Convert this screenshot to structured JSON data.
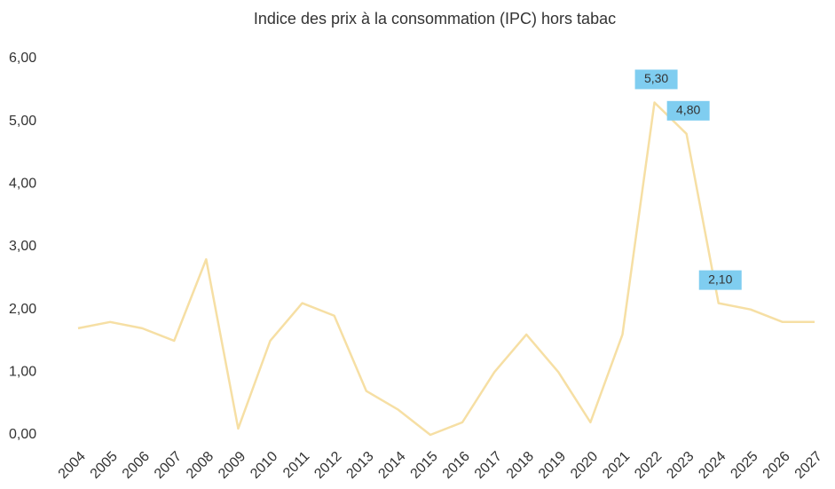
{
  "chart_data": {
    "type": "line",
    "title": "Indice des prix à la consommation (IPC) hors tabac",
    "categories": [
      "2004",
      "2005",
      "2006",
      "2007",
      "2008",
      "2009",
      "2010",
      "2011",
      "2012",
      "2013",
      "2014",
      "2015",
      "2016",
      "2017",
      "2018",
      "2019",
      "2020",
      "2021",
      "2022",
      "2023",
      "2024",
      "2025",
      "2026",
      "2027"
    ],
    "values": [
      1.7,
      1.8,
      1.7,
      1.5,
      2.8,
      0.1,
      1.5,
      2.1,
      1.9,
      0.7,
      0.4,
      0.0,
      0.2,
      1.0,
      1.6,
      1.0,
      0.2,
      1.6,
      5.3,
      4.8,
      2.1,
      2.0,
      1.8,
      1.8
    ],
    "value_labels": [
      null,
      null,
      null,
      null,
      null,
      null,
      null,
      null,
      null,
      null,
      null,
      null,
      null,
      null,
      null,
      null,
      null,
      null,
      "5,30",
      "4,80",
      "2,10",
      null,
      null,
      null
    ],
    "color": "#f6dfa4",
    "label_color": "#7fcdf0",
    "ylim": [
      0,
      6
    ],
    "yticks": [
      {
        "value": 0,
        "label": "0,00"
      },
      {
        "value": 1,
        "label": "1,00"
      },
      {
        "value": 2,
        "label": "2,00"
      },
      {
        "value": 3,
        "label": "3,00"
      },
      {
        "value": 4,
        "label": "4,00"
      },
      {
        "value": 5,
        "label": "5,00"
      },
      {
        "value": 6,
        "label": "6,00"
      }
    ],
    "grid": false
  }
}
